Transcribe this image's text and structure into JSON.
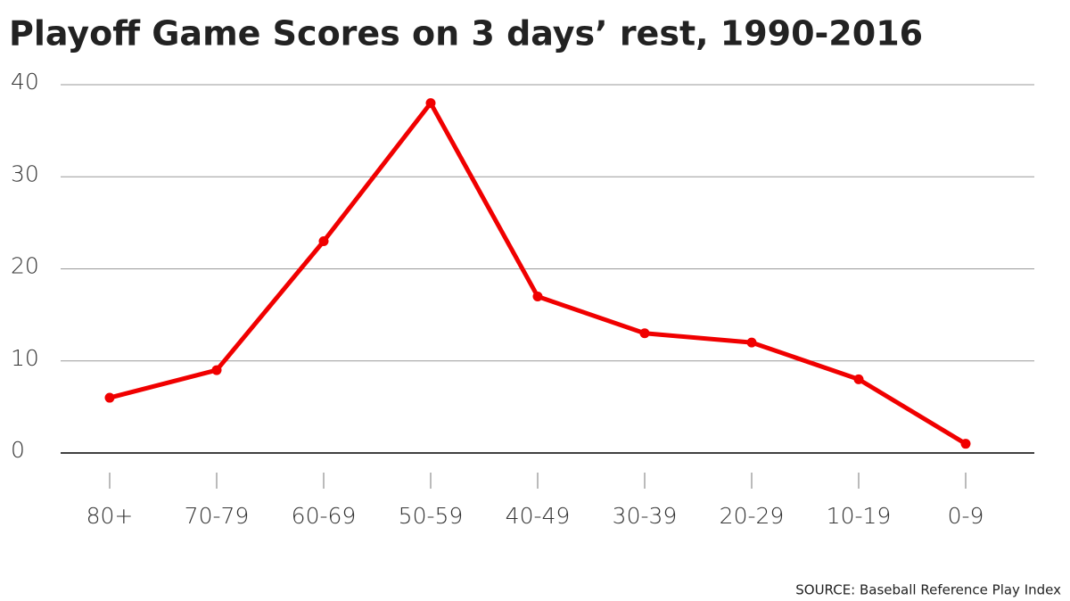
{
  "chart_data": {
    "type": "line",
    "title": "Playoff Game Scores on 3 days’ rest, 1990-2016",
    "source": "SOURCE: Baseball Reference Play Index",
    "categories": [
      "80+",
      "70-79",
      "60-69",
      "50-59",
      "40-49",
      "30-39",
      "20-29",
      "10-19",
      "0-9"
    ],
    "values": [
      6,
      9,
      23,
      38,
      17,
      13,
      12,
      8,
      1
    ],
    "color": "#f00000",
    "ylim": [
      0,
      40
    ],
    "yticks": [
      0,
      10,
      20,
      30,
      40
    ],
    "grid": true
  }
}
